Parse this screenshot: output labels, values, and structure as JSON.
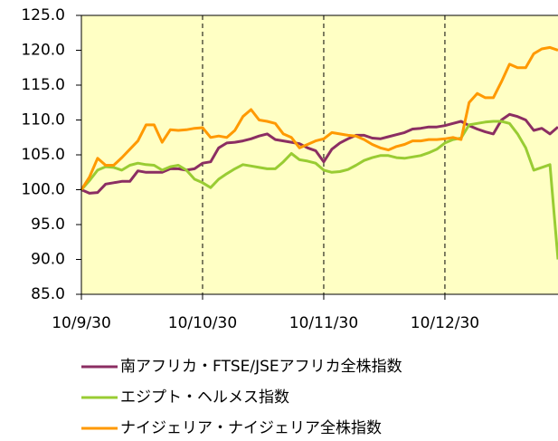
{
  "chart_data": {
    "type": "line",
    "categories": [
      "10/9/30",
      null,
      null,
      null,
      null,
      null,
      null,
      null,
      null,
      null,
      null,
      null,
      null,
      null,
      null,
      "10/10/30",
      null,
      null,
      null,
      null,
      null,
      null,
      null,
      null,
      null,
      null,
      null,
      null,
      null,
      null,
      "10/11/30",
      null,
      null,
      null,
      null,
      null,
      null,
      null,
      null,
      null,
      null,
      null,
      null,
      null,
      null,
      "10/12/30",
      null,
      null,
      null,
      null,
      null,
      null,
      null,
      null,
      null,
      null,
      null,
      null,
      null,
      null
    ],
    "series": [
      {
        "name": "南アフリカ・FTSE/JSEアフリカ全株指数",
        "color": "#8b2e62",
        "values": [
          100,
          99.5,
          99.6,
          100.8,
          101,
          101.2,
          101.2,
          102.7,
          102.5,
          102.5,
          102.5,
          103,
          103,
          102.8,
          103,
          103.8,
          104,
          106,
          106.7,
          106.8,
          107,
          107.3,
          107.7,
          108,
          107.2,
          107,
          106.8,
          106.6,
          106,
          105.6,
          104,
          105.8,
          106.7,
          107.3,
          107.8,
          107.8,
          107.4,
          107.3,
          107.6,
          107.9,
          108.2,
          108.7,
          108.8,
          109,
          109,
          109.2,
          109.5,
          109.8,
          109.2,
          108.7,
          108.3,
          108,
          110,
          110.8,
          110.5,
          110,
          108.5,
          108.8,
          108,
          109
        ]
      },
      {
        "name": "エジプト・ヘルメス指数",
        "color": "#99cc33",
        "values": [
          100,
          101.3,
          102.8,
          103.3,
          103.2,
          102.8,
          103.5,
          103.8,
          103.6,
          103.5,
          102.8,
          103.3,
          103.5,
          102.8,
          101.5,
          101,
          100.3,
          101.5,
          102.3,
          103,
          103.6,
          103.4,
          103.2,
          103,
          103,
          104,
          105.2,
          104.3,
          104.1,
          103.8,
          102.8,
          102.5,
          102.6,
          102.9,
          103.5,
          104.2,
          104.6,
          104.9,
          104.9,
          104.6,
          104.5,
          104.7,
          104.9,
          105.3,
          105.8,
          106.7,
          107.2,
          107.4,
          109.3,
          109.5,
          109.7,
          109.8,
          109.8,
          109.5,
          108,
          106,
          102.8,
          103.2,
          103.6,
          90
        ]
      },
      {
        "name": "ナイジェリア・ナイジェリア全株指数",
        "color": "#ff9900",
        "values": [
          100,
          101.8,
          104.5,
          103.5,
          103.5,
          104.6,
          105.8,
          107,
          109.3,
          109.3,
          106.8,
          108.6,
          108.5,
          108.6,
          108.8,
          108.9,
          107.5,
          107.7,
          107.5,
          108.5,
          110.5,
          111.5,
          110,
          109.8,
          109.5,
          108,
          107.5,
          106,
          106.5,
          107,
          107.3,
          108.2,
          108,
          107.8,
          107.7,
          107.2,
          106.5,
          106,
          105.7,
          106.2,
          106.5,
          107,
          107,
          107.2,
          107.2,
          107.3,
          107.5,
          107.2,
          112.5,
          113.8,
          113.2,
          113.2,
          115.5,
          118,
          117.5,
          117.5,
          119.5,
          120.2,
          120.4,
          120
        ]
      }
    ],
    "ylim": [
      85,
      125
    ],
    "yticks": [
      {
        "value": 85,
        "label": "85.0"
      },
      {
        "value": 90,
        "label": "90.0"
      },
      {
        "value": 95,
        "label": "95.0"
      },
      {
        "value": 100,
        "label": "100.0"
      },
      {
        "value": 105,
        "label": "105.0"
      },
      {
        "value": 110,
        "label": "110.0"
      },
      {
        "value": 115,
        "label": "115.0"
      },
      {
        "value": 120,
        "label": "120.0"
      },
      {
        "value": 125,
        "label": "125.0"
      }
    ],
    "background": "#ffffc4"
  }
}
